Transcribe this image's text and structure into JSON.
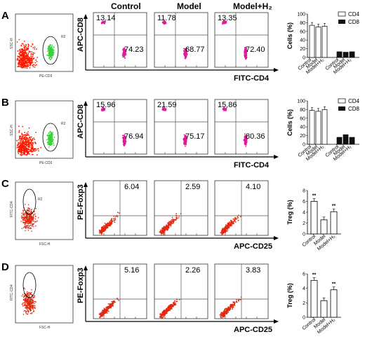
{
  "columns": [
    "Control",
    "Model",
    "Model+H₂"
  ],
  "rows": [
    {
      "letter": "A",
      "gate_label": "R2",
      "gate_x_axis": "PE-CD3",
      "gate_y_axis": "SSC-H",
      "x_axis": "FITC-CD4",
      "y_axis": "APC-CD8",
      "quadrant_values": [
        [
          "13.14",
          "74.23"
        ],
        [
          "11.78",
          "68.77"
        ],
        [
          "13.35",
          "72.40"
        ]
      ],
      "bar_ylabel": "Cells (%)",
      "bar_categories": [
        "Control",
        "Model",
        "Model+H₂"
      ],
      "bar_yticks": [
        "0",
        "20",
        "40",
        "60",
        "80",
        "100"
      ],
      "legend": [
        "CD4",
        "CD8"
      ]
    },
    {
      "letter": "B",
      "gate_label": "R2",
      "gate_x_axis": "PE-CD3",
      "gate_y_axis": "SSC-H",
      "x_axis": "FITC-CD4",
      "y_axis": "APC-CD8",
      "quadrant_values": [
        [
          "15.96",
          "76.94"
        ],
        [
          "21.59",
          "75.17"
        ],
        [
          "15.86",
          "80.36"
        ]
      ],
      "bar_ylabel": "Cells (%)",
      "bar_categories": [
        "Control",
        "Model",
        "Model+H₂"
      ],
      "bar_yticks": [
        "0",
        "20",
        "40",
        "60",
        "80",
        "100"
      ],
      "legend": [
        "CD4",
        "CD8"
      ]
    },
    {
      "letter": "C",
      "gate_label": "R2",
      "gate_x_axis": "FSC-H",
      "gate_y_axis": "FITC-CD4",
      "x_axis": "APC-CD25",
      "y_axis": "PE-Foxp3",
      "quadrant_values": [
        [
          "6.04"
        ],
        [
          "2.59"
        ],
        [
          "4.10"
        ]
      ],
      "bar_ylabel": "Treg (%)",
      "bar_categories": [
        "Control",
        "Model",
        "Model+H₂"
      ],
      "bar_yticks": [
        "0",
        "2",
        "4",
        "6",
        "8"
      ],
      "significance": [
        "**",
        "",
        "**"
      ]
    },
    {
      "letter": "D",
      "gate_label": "",
      "gate_x_axis": "FSC-H",
      "gate_y_axis": "FITC-CD4",
      "x_axis": "APC-CD25",
      "y_axis": "PE-Foxp3",
      "quadrant_values": [
        [
          "5.16"
        ],
        [
          "2.26"
        ],
        [
          "3.83"
        ]
      ],
      "bar_ylabel": "Treg (%)",
      "bar_categories": [
        "Control",
        "Model",
        "Model+H₂"
      ],
      "bar_yticks": [
        "0",
        "2",
        "4",
        "6"
      ],
      "significance": [
        "**",
        "",
        "**"
      ]
    }
  ],
  "chart_data": [
    {
      "type": "bar",
      "title": "",
      "ylabel": "Cells (%)",
      "categories": [
        "Control",
        "Model",
        "Model+H₂"
      ],
      "series": [
        {
          "name": "CD4",
          "values": [
            74,
            70,
            72
          ]
        },
        {
          "name": "CD8",
          "values": [
            13,
            12,
            13
          ]
        }
      ],
      "ylim": [
        0,
        100
      ]
    },
    {
      "type": "bar",
      "title": "",
      "ylabel": "Cells (%)",
      "categories": [
        "Control",
        "Model",
        "Model+H₂"
      ],
      "series": [
        {
          "name": "CD4",
          "values": [
            78,
            76,
            80
          ]
        },
        {
          "name": "CD8",
          "values": [
            16,
            22,
            16
          ]
        }
      ],
      "ylim": [
        0,
        100
      ]
    },
    {
      "type": "bar",
      "title": "",
      "ylabel": "Treg (%)",
      "categories": [
        "Control",
        "Model",
        "Model+H₂"
      ],
      "series": [
        {
          "values": [
            6.0,
            2.6,
            4.1
          ]
        }
      ],
      "ylim": [
        0,
        8
      ]
    },
    {
      "type": "bar",
      "title": "",
      "ylabel": "Treg (%)",
      "categories": [
        "Control",
        "Model",
        "Model+H₂"
      ],
      "series": [
        {
          "values": [
            5.1,
            2.3,
            3.8
          ]
        }
      ],
      "ylim": [
        0,
        6
      ]
    }
  ],
  "colors": {
    "cd4_dots": "#e0199a",
    "treg_dots": "#e02a10",
    "gate_red": "#ff1a00",
    "gate_green": "#39d03a"
  }
}
